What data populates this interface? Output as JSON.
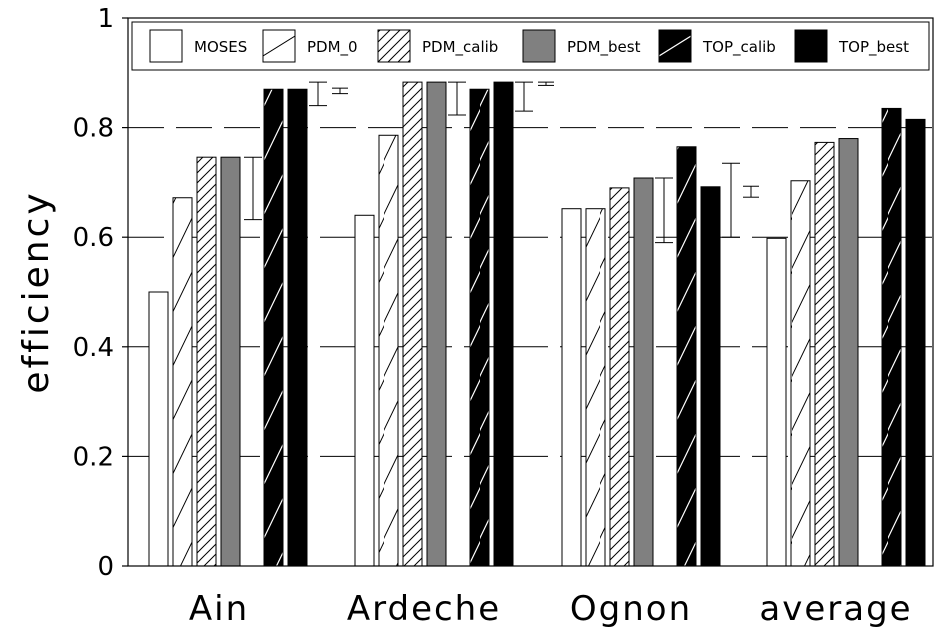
{
  "chart_data": {
    "type": "bar",
    "title": "",
    "xlabel": "",
    "ylabel": "efficiency",
    "ylim": [
      0,
      1
    ],
    "yticks": [
      "0",
      "0.2",
      "0.4",
      "0.6",
      "0.8",
      "1"
    ],
    "grid": "horizontal dashed",
    "legend_position": "top",
    "categories": [
      "Ain",
      "Ardeche",
      "Ognon",
      "average"
    ],
    "series": [
      {
        "name": "MOSES",
        "fill": "white",
        "values": [
          0.5,
          0.64,
          0.652,
          0.598
        ]
      },
      {
        "name": "PDM_0",
        "fill": "white-sparse-hatch",
        "values": [
          0.672,
          0.786,
          0.652,
          0.703
        ]
      },
      {
        "name": "PDM_calib",
        "fill": "white-dense-hatch",
        "values": [
          0.746,
          0.883,
          0.69,
          0.773
        ]
      },
      {
        "name": "PDM_best",
        "fill": "#808080",
        "values": [
          0.746,
          0.883,
          0.708,
          0.78
        ]
      },
      {
        "name": "TOP_calib",
        "fill": "black-hatch",
        "values": [
          0.87,
          0.87,
          0.765,
          0.835
        ]
      },
      {
        "name": "TOP_best",
        "fill": "#000000",
        "values": [
          0.87,
          0.883,
          0.692,
          0.815
        ]
      }
    ],
    "error_ranges": [
      {
        "category": "Ain",
        "group": "PDM",
        "low": 0.632,
        "high": 0.746
      },
      {
        "category": "Ain",
        "group": "TOP",
        "low": 0.84,
        "high": 0.883
      },
      {
        "category": "Ain",
        "group": "TOP_inner",
        "low": 0.862,
        "high": 0.872
      },
      {
        "category": "Ardeche",
        "group": "PDM",
        "low": 0.823,
        "high": 0.883
      },
      {
        "category": "Ardeche",
        "group": "TOP",
        "low": 0.83,
        "high": 0.883
      },
      {
        "category": "Ardeche",
        "group": "TOP_inner",
        "low": 0.877,
        "high": 0.883
      },
      {
        "category": "Ognon",
        "group": "PDM",
        "low": 0.59,
        "high": 0.708
      },
      {
        "category": "Ognon",
        "group": "TOP",
        "low": 0.6,
        "high": 0.735
      },
      {
        "category": "Ognon",
        "group": "TOP_inner",
        "low": 0.673,
        "high": 0.693
      }
    ]
  }
}
